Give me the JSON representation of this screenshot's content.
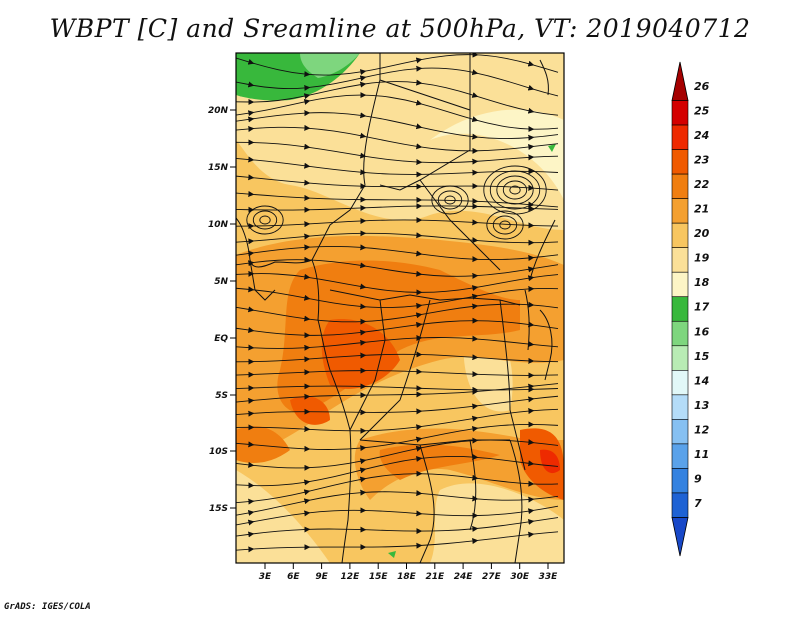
{
  "title": "WBPT [C] and Sreamline at 500hPa, VT: 2019040712",
  "credit": "GrADS: IGES/COLA",
  "axes": {
    "lat_labels": [
      "20N",
      "15N",
      "10N",
      "5N",
      "EQ",
      "5S",
      "10S",
      "15S"
    ],
    "lon_labels": [
      "3E",
      "6E",
      "9E",
      "12E",
      "15E",
      "18E",
      "21E",
      "24E",
      "27E",
      "30E",
      "33E"
    ]
  },
  "legend": {
    "levels": [
      "26",
      "25",
      "24",
      "23",
      "22",
      "21",
      "20",
      "19",
      "18",
      "17",
      "16",
      "15",
      "14",
      "13",
      "12",
      "11",
      "9",
      "7"
    ],
    "colors": [
      "#a50000",
      "#d40000",
      "#ee2a00",
      "#f05a00",
      "#f07e10",
      "#f4a030",
      "#f8c660",
      "#fbe098",
      "#fdf5c6",
      "#38b83c",
      "#7ed67e",
      "#b8ecb4",
      "#e2f8f8",
      "#b4dcf8",
      "#86c0f2",
      "#5aa2ea",
      "#3482e0",
      "#1e62d4",
      "#1848c8"
    ]
  }
}
